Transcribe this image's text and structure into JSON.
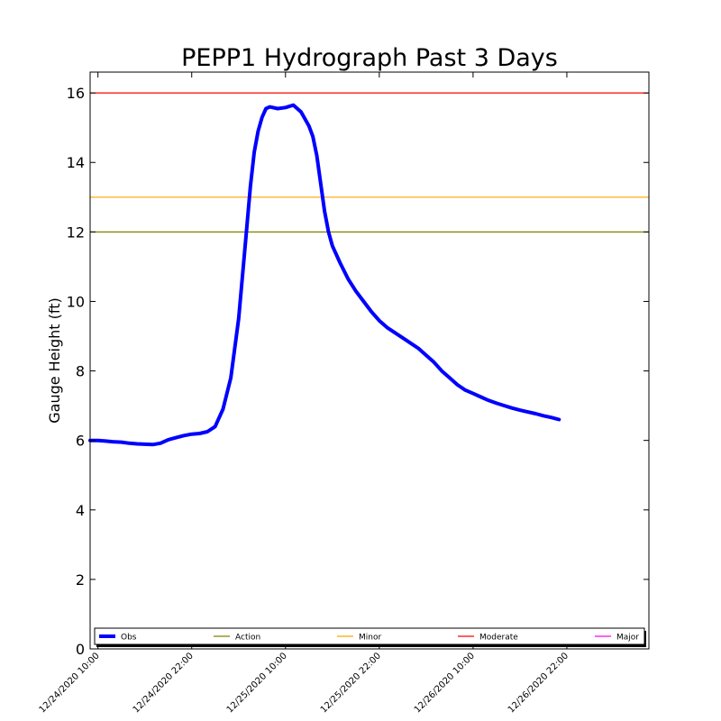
{
  "chart_data": {
    "type": "line",
    "title": "PEPP1 Hydrograph Past 3 Days",
    "xlabel": "",
    "ylabel": "Gauge Height (ft)",
    "ylim": [
      0,
      16.6
    ],
    "yticks": [
      0,
      2,
      4,
      6,
      8,
      10,
      12,
      14,
      16
    ],
    "xlim_hours": [
      0,
      71.5
    ],
    "xticks": [
      {
        "hour": 1,
        "label": "12/24/2020 10:00"
      },
      {
        "hour": 13,
        "label": "12/24/2020 22:00"
      },
      {
        "hour": 25,
        "label": "12/25/2020 10:00"
      },
      {
        "hour": 37,
        "label": "12/25/2020 22:00"
      },
      {
        "hour": 49,
        "label": "12/26/2020 10:00"
      },
      {
        "hour": 61,
        "label": "12/26/2020 22:00"
      }
    ],
    "grid": false,
    "legend_placement": "bottom",
    "series": [
      {
        "name": "Obs",
        "color": "#0000ff",
        "points": [
          [
            0,
            6.0
          ],
          [
            1,
            6.0
          ],
          [
            2,
            5.98
          ],
          [
            3,
            5.96
          ],
          [
            4,
            5.95
          ],
          [
            5,
            5.92
          ],
          [
            6,
            5.9
          ],
          [
            7,
            5.89
          ],
          [
            8,
            5.88
          ],
          [
            9,
            5.92
          ],
          [
            10,
            6.02
          ],
          [
            11,
            6.08
          ],
          [
            12,
            6.14
          ],
          [
            13,
            6.18
          ],
          [
            14,
            6.2
          ],
          [
            15,
            6.25
          ],
          [
            16,
            6.4
          ],
          [
            17,
            6.9
          ],
          [
            18,
            7.8
          ],
          [
            19,
            9.5
          ],
          [
            20,
            12.0
          ],
          [
            20.5,
            13.3
          ],
          [
            21,
            14.3
          ],
          [
            21.5,
            14.9
          ],
          [
            22,
            15.3
          ],
          [
            22.5,
            15.55
          ],
          [
            23,
            15.6
          ],
          [
            24,
            15.55
          ],
          [
            25,
            15.58
          ],
          [
            26,
            15.65
          ],
          [
            27,
            15.45
          ],
          [
            28,
            15.05
          ],
          [
            28.5,
            14.75
          ],
          [
            29,
            14.2
          ],
          [
            29.5,
            13.4
          ],
          [
            30,
            12.6
          ],
          [
            30.5,
            12.0
          ],
          [
            31,
            11.6
          ],
          [
            32,
            11.1
          ],
          [
            33,
            10.65
          ],
          [
            34,
            10.3
          ],
          [
            35,
            10.0
          ],
          [
            36,
            9.7
          ],
          [
            37,
            9.45
          ],
          [
            38,
            9.25
          ],
          [
            39,
            9.1
          ],
          [
            40,
            8.95
          ],
          [
            41,
            8.8
          ],
          [
            42,
            8.65
          ],
          [
            43,
            8.45
          ],
          [
            44,
            8.25
          ],
          [
            45,
            8.0
          ],
          [
            46,
            7.8
          ],
          [
            47,
            7.6
          ],
          [
            48,
            7.45
          ],
          [
            49,
            7.35
          ],
          [
            50,
            7.25
          ],
          [
            51,
            7.15
          ],
          [
            52,
            7.07
          ],
          [
            53,
            7.0
          ],
          [
            54,
            6.93
          ],
          [
            55,
            6.87
          ],
          [
            56,
            6.82
          ],
          [
            57,
            6.77
          ],
          [
            58,
            6.71
          ],
          [
            59,
            6.66
          ],
          [
            60,
            6.6
          ]
        ]
      }
    ],
    "thresholds": [
      {
        "name": "Action",
        "value": 12,
        "color": "#808000"
      },
      {
        "name": "Minor",
        "value": 13,
        "color": "#ffa500"
      },
      {
        "name": "Moderate",
        "value": 16,
        "color": "#ff0000"
      },
      {
        "name": "Major",
        "value": null,
        "color": "#ff00ff"
      }
    ],
    "legend": [
      {
        "label": "Obs",
        "color": "#0000ff",
        "bold": true
      },
      {
        "label": "Action",
        "color": "#808000",
        "bold": false
      },
      {
        "label": "Minor",
        "color": "#ffa500",
        "bold": false
      },
      {
        "label": "Moderate",
        "color": "#ff0000",
        "bold": false
      },
      {
        "label": "Major",
        "color": "#ff00ff",
        "bold": false
      }
    ]
  }
}
